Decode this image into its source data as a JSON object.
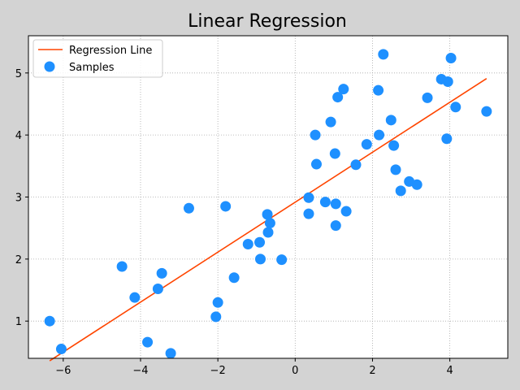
{
  "chart_data": {
    "type": "scatter",
    "title": "Linear Regression",
    "xlabel": "",
    "ylabel": "",
    "xlim": [
      -6.9,
      5.5
    ],
    "ylim": [
      0.4,
      5.6
    ],
    "xticks": [
      -6,
      -4,
      -2,
      0,
      2,
      4
    ],
    "yticks": [
      1,
      2,
      3,
      4,
      5
    ],
    "x_tick_labels": [
      "−6",
      "−4",
      "−2",
      "0",
      "2",
      "4"
    ],
    "y_tick_labels": [
      "1",
      "2",
      "3",
      "4",
      "5"
    ],
    "grid": true,
    "legend": {
      "position": "top-left",
      "entries": [
        "Regression Line",
        "Samples"
      ]
    },
    "colors": {
      "line": "#ff4500",
      "points": "#1e90ff",
      "background": "#d3d3d3",
      "plot_area": "#ffffff",
      "grid": "#a9a9a9"
    },
    "series": [
      {
        "name": "Samples",
        "kind": "scatter",
        "points": [
          [
            -6.35,
            1.0
          ],
          [
            -6.05,
            0.55
          ],
          [
            -4.48,
            1.88
          ],
          [
            -4.15,
            1.38
          ],
          [
            -3.82,
            0.66
          ],
          [
            -3.55,
            1.52
          ],
          [
            -3.45,
            1.77
          ],
          [
            -3.22,
            0.48
          ],
          [
            -2.75,
            2.82
          ],
          [
            -2.05,
            1.07
          ],
          [
            -2.0,
            1.3
          ],
          [
            -1.8,
            2.85
          ],
          [
            -1.58,
            1.7
          ],
          [
            -1.22,
            2.24
          ],
          [
            -0.92,
            2.27
          ],
          [
            -0.9,
            2.0
          ],
          [
            -0.72,
            2.72
          ],
          [
            -0.7,
            2.43
          ],
          [
            -0.65,
            2.58
          ],
          [
            -0.35,
            1.99
          ],
          [
            0.35,
            2.99
          ],
          [
            0.35,
            2.73
          ],
          [
            0.52,
            4.0
          ],
          [
            0.55,
            3.53
          ],
          [
            0.78,
            2.92
          ],
          [
            0.92,
            4.21
          ],
          [
            1.03,
            3.7
          ],
          [
            1.05,
            2.54
          ],
          [
            1.05,
            2.89
          ],
          [
            1.1,
            4.61
          ],
          [
            1.25,
            4.74
          ],
          [
            1.32,
            2.77
          ],
          [
            1.57,
            3.52
          ],
          [
            1.85,
            3.85
          ],
          [
            2.15,
            4.72
          ],
          [
            2.17,
            4.0
          ],
          [
            2.28,
            5.3
          ],
          [
            2.48,
            4.24
          ],
          [
            2.55,
            3.83
          ],
          [
            2.6,
            3.44
          ],
          [
            2.73,
            3.1
          ],
          [
            2.95,
            3.25
          ],
          [
            3.15,
            3.2
          ],
          [
            3.42,
            4.6
          ],
          [
            3.78,
            4.9
          ],
          [
            3.92,
            3.94
          ],
          [
            3.95,
            4.86
          ],
          [
            4.03,
            5.24
          ],
          [
            4.15,
            4.45
          ],
          [
            4.95,
            4.38
          ]
        ]
      },
      {
        "name": "Regression Line",
        "kind": "line",
        "x": [
          -6.35,
          4.95
        ],
        "y": [
          0.36,
          4.91
        ]
      }
    ]
  }
}
